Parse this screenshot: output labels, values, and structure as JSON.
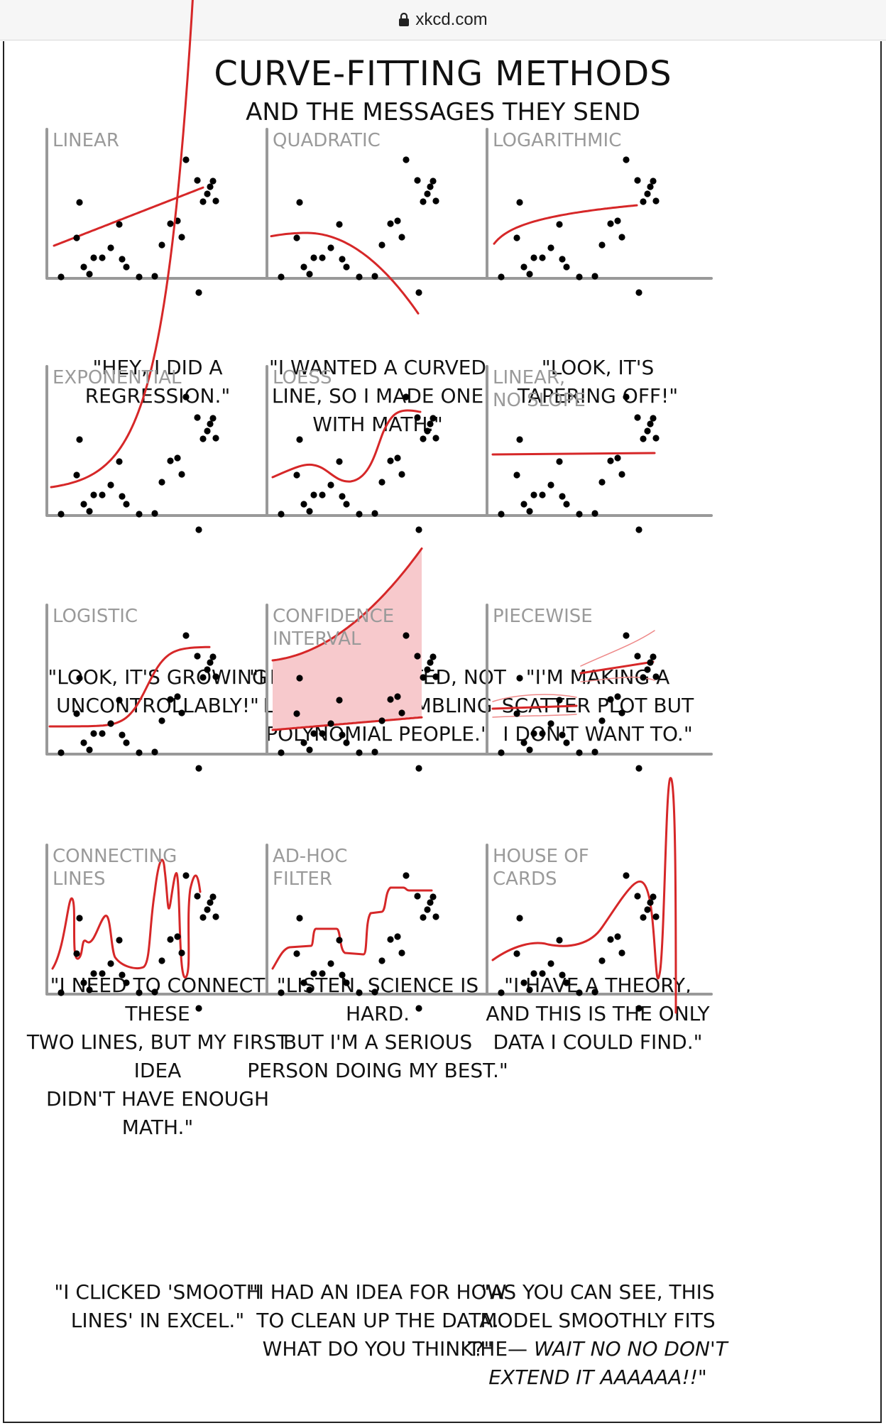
{
  "browser": {
    "url": "xkcd.com",
    "lock_icon": "lock-icon"
  },
  "comic": {
    "title": "CURVE-FITTING METHODS",
    "subtitle": "AND THE MESSAGES THEY SEND",
    "colors": {
      "fit": "#d62728",
      "ci_fill": "#f7c9cc",
      "axis": "#999999",
      "dot": "#000000"
    },
    "panels": [
      {
        "label": "LINEAR",
        "caption": "\"HEY, I DID A\nREGRESSION.\""
      },
      {
        "label": "QUADRATIC",
        "caption": "\"I WANTED A CURVED\nLINE, SO I MADE ONE\nWITH MATH.\""
      },
      {
        "label": "LOGARITHMIC",
        "caption": "\"LOOK, IT'S\nTAPERING OFF!\""
      },
      {
        "label": "EXPONENTIAL",
        "caption": "\"LOOK, IT'S GROWING\nUNCONTROLLABLY!\""
      },
      {
        "label": "LOESS",
        "caption": "\"I'M SOPHISTICATED, NOT\nLIKE THOSE BUMBLING\nPOLYNOMIAL PEOPLE.\""
      },
      {
        "label": "LINEAR,\nNO SLOPE",
        "caption": "\"I'M MAKING A\nSCATTER PLOT BUT\nI DON'T WANT TO.\""
      },
      {
        "label": "LOGISTIC",
        "caption": "\"I NEED TO CONNECT THESE\nTWO LINES, BUT MY FIRST IDEA\nDIDN'T HAVE ENOUGH MATH.\""
      },
      {
        "label": "CONFIDENCE\nINTERVAL",
        "caption": "\"LISTEN, SCIENCE IS HARD.\nBUT I'M A SERIOUS\nPERSON DOING MY BEST.\""
      },
      {
        "label": "PIECEWISE",
        "caption": "\"I HAVE A THEORY,\nAND THIS IS THE ONLY\nDATA I COULD FIND.\""
      },
      {
        "label": "CONNECTING\nLINES",
        "caption": "\"I CLICKED 'SMOOTH\nLINES' IN EXCEL.\""
      },
      {
        "label": "AD-HOC\nFILTER",
        "caption": "\"I HAD AN IDEA FOR HOW\nTO CLEAN UP THE DATA.\nWHAT DO YOU THINK?\""
      },
      {
        "label": "HOUSE OF\nCARDS",
        "caption_plain": "\"AS YOU CAN SEE, THIS\nMODEL SMOOTHLY FITS\nTHE— ",
        "caption_italic": "WAIT NO NO DON'T\nEXTEND IT AAAAAA!!\""
      }
    ]
  }
}
